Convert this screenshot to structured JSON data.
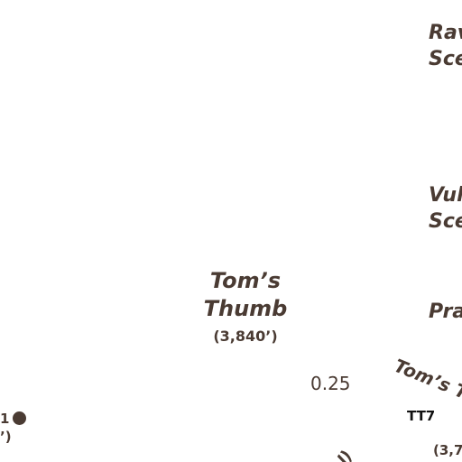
{
  "colors": {
    "label": "#4a3b33",
    "code": "#111111",
    "marker": "#4a3b33",
    "background": "#ffffff"
  },
  "labels": {
    "raven_line1": "Rav",
    "raven_line2": "Sce",
    "vulture_line1": "Vul",
    "vulture_line2": "Sce",
    "toms_thumb_line1": "Tom’s",
    "toms_thumb_line2": "Thumb",
    "toms_thumb_elev": "(3,840’)",
    "pra": "Pra",
    "toms_thumb_trail": "Tom’s Th",
    "distance": "0.25",
    "trail_code": "TT7",
    "left_partial_top": "1",
    "left_partial_bottom": "’)",
    "bottom_elev_partial": "(3,74",
    "bottom_partial": "l)"
  },
  "icons": {
    "marker": "point-marker-icon"
  }
}
